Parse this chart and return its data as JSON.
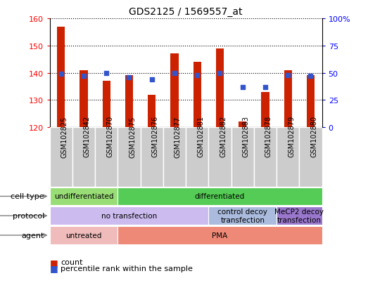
{
  "title": "GDS2125 / 1569557_at",
  "samples": [
    "GSM102825",
    "GSM102842",
    "GSM102870",
    "GSM102875",
    "GSM102876",
    "GSM102877",
    "GSM102881",
    "GSM102882",
    "GSM102883",
    "GSM102878",
    "GSM102879",
    "GSM102880"
  ],
  "counts": [
    157,
    141,
    137,
    139,
    132,
    147,
    144,
    149,
    122,
    133,
    141,
    139
  ],
  "percentile_ranks": [
    49,
    47,
    50,
    46,
    44,
    50,
    48,
    50,
    37,
    37,
    48,
    47
  ],
  "ymin": 120,
  "ymax": 160,
  "yticks": [
    120,
    130,
    140,
    150,
    160
  ],
  "y2ticks": [
    0,
    25,
    50,
    75,
    100
  ],
  "bar_color": "#cc2200",
  "dot_color": "#3355cc",
  "bar_width": 0.35,
  "cell_type_labels": [
    {
      "text": "undifferentiated",
      "start": 0,
      "end": 3,
      "color": "#99dd77"
    },
    {
      "text": "differentiated",
      "start": 3,
      "end": 12,
      "color": "#55cc55"
    }
  ],
  "protocol_labels": [
    {
      "text": "no transfection",
      "start": 0,
      "end": 7,
      "color": "#ccbbee"
    },
    {
      "text": "control decoy\ntransfection",
      "start": 7,
      "end": 10,
      "color": "#aabbdd"
    },
    {
      "text": "MeCP2 decoy\ntransfection",
      "start": 10,
      "end": 12,
      "color": "#9977cc"
    }
  ],
  "agent_labels": [
    {
      "text": "untreated",
      "start": 0,
      "end": 3,
      "color": "#f0bbbb"
    },
    {
      "text": "PMA",
      "start": 3,
      "end": 12,
      "color": "#ee8877"
    }
  ],
  "row_labels": [
    "cell type",
    "protocol",
    "agent"
  ],
  "legend_count": "count",
  "legend_pct": "percentile rank within the sample",
  "xlabel_color": "#888888",
  "tick_bg_color": "#cccccc"
}
